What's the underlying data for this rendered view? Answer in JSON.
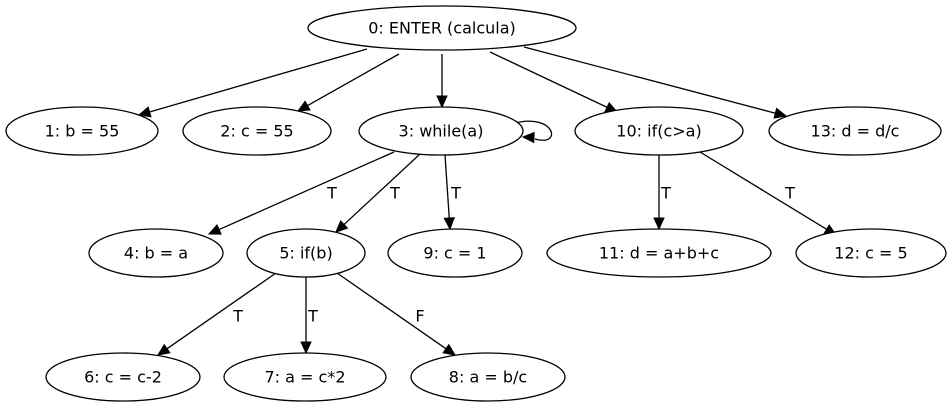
{
  "graph": {
    "nodes": [
      {
        "id": "n0",
        "label": "0: ENTER (calcula)"
      },
      {
        "id": "n1",
        "label": "1: b = 55"
      },
      {
        "id": "n2",
        "label": "2: c = 55"
      },
      {
        "id": "n3",
        "label": "3: while(a)"
      },
      {
        "id": "n10",
        "label": "10: if(c>a)"
      },
      {
        "id": "n13",
        "label": "13: d = d/c"
      },
      {
        "id": "n4",
        "label": "4: b = a"
      },
      {
        "id": "n5",
        "label": "5: if(b)"
      },
      {
        "id": "n9",
        "label": "9: c = 1"
      },
      {
        "id": "n11",
        "label": "11: d = a+b+c"
      },
      {
        "id": "n12",
        "label": "12: c = 5"
      },
      {
        "id": "n6",
        "label": "6: c = c-2"
      },
      {
        "id": "n7",
        "label": "7: a = c*2"
      },
      {
        "id": "n8",
        "label": "8: a = b/c"
      }
    ],
    "edges": [
      {
        "from": "n0",
        "to": "n1",
        "label": ""
      },
      {
        "from": "n0",
        "to": "n2",
        "label": ""
      },
      {
        "from": "n0",
        "to": "n3",
        "label": ""
      },
      {
        "from": "n0",
        "to": "n10",
        "label": ""
      },
      {
        "from": "n0",
        "to": "n13",
        "label": ""
      },
      {
        "from": "n3",
        "to": "n3",
        "label": ""
      },
      {
        "from": "n3",
        "to": "n4",
        "label": "T"
      },
      {
        "from": "n3",
        "to": "n5",
        "label": "T"
      },
      {
        "from": "n3",
        "to": "n9",
        "label": "T"
      },
      {
        "from": "n10",
        "to": "n11",
        "label": "T"
      },
      {
        "from": "n10",
        "to": "n12",
        "label": "T"
      },
      {
        "from": "n5",
        "to": "n6",
        "label": "T"
      },
      {
        "from": "n5",
        "to": "n7",
        "label": "T"
      },
      {
        "from": "n5",
        "to": "n8",
        "label": "F"
      }
    ]
  }
}
